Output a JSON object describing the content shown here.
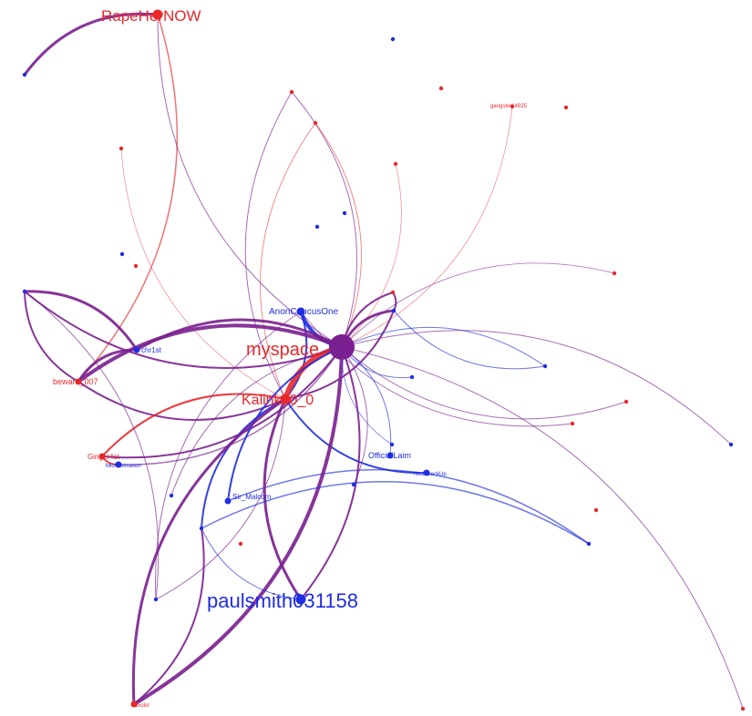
{
  "graph": {
    "colors": {
      "red": "#e8282b",
      "blue": "#1f2ee0",
      "purple": "#7a1f8f"
    },
    "nodes": [
      {
        "id": "rape",
        "label": "RapeHerNOW",
        "color": "red",
        "size": "large"
      },
      {
        "id": "nwaccount",
        "label": "",
        "color": "blue",
        "size": "tiny"
      },
      {
        "id": "tb1",
        "label": "",
        "color": "blue",
        "size": "tiny"
      },
      {
        "id": "tr1",
        "label": "",
        "color": "red",
        "size": "tiny"
      },
      {
        "id": "ganga",
        "label": "gangster14925",
        "color": "red",
        "size": "tiny"
      },
      {
        "id": "tr2",
        "label": "",
        "color": "red",
        "size": "tiny"
      },
      {
        "id": "tr3",
        "label": "",
        "color": "red",
        "size": "tiny"
      },
      {
        "id": "tr4",
        "label": "",
        "color": "red",
        "size": "tiny"
      },
      {
        "id": "tr5",
        "label": "",
        "color": "red",
        "size": "tiny"
      },
      {
        "id": "tr6",
        "label": "",
        "color": "red",
        "size": "tiny"
      },
      {
        "id": "tb2",
        "label": "",
        "color": "blue",
        "size": "tiny"
      },
      {
        "id": "tb3",
        "label": "",
        "color": "blue",
        "size": "tiny"
      },
      {
        "id": "tb4",
        "label": "",
        "color": "blue",
        "size": "tiny"
      },
      {
        "id": "tr7",
        "label": "",
        "color": "red",
        "size": "tiny"
      },
      {
        "id": "tr8",
        "label": "",
        "color": "red",
        "size": "tiny"
      },
      {
        "id": "tb5",
        "label": "",
        "color": "blue",
        "size": "tiny"
      },
      {
        "id": "anon",
        "label": "AnonCaucusOne",
        "color": "blue",
        "size": "medium"
      },
      {
        "id": "tb6",
        "label": "",
        "color": "blue",
        "size": "tiny"
      },
      {
        "id": "tr9",
        "label": "",
        "color": "red",
        "size": "tiny"
      },
      {
        "id": "chr",
        "label": "chr1st",
        "color": "blue",
        "size": "small"
      },
      {
        "id": "hub",
        "label": "myspace",
        "color": "red",
        "size": "hub"
      },
      {
        "id": "beware",
        "label": "beware_007",
        "color": "red",
        "size": "small"
      },
      {
        "id": "tb7",
        "label": "",
        "color": "blue",
        "size": "tiny"
      },
      {
        "id": "tb8",
        "label": "",
        "color": "blue",
        "size": "tiny"
      },
      {
        "id": "kal",
        "label": "Kalinka0_0",
        "color": "red",
        "size": "large"
      },
      {
        "id": "tr10",
        "label": "",
        "color": "red",
        "size": "tiny"
      },
      {
        "id": "tr11",
        "label": "",
        "color": "red",
        "size": "tiny"
      },
      {
        "id": "tb9",
        "label": "",
        "color": "blue",
        "size": "tiny"
      },
      {
        "id": "laim",
        "label": "OfficialLaim",
        "color": "blue",
        "size": "small"
      },
      {
        "id": "gin",
        "label": "Ginger4st",
        "color": "red",
        "size": "small"
      },
      {
        "id": "mic",
        "label": "Michaelmason",
        "color": "blue",
        "size": "small"
      },
      {
        "id": "tb10",
        "label": "",
        "color": "blue",
        "size": "tiny"
      },
      {
        "id": "check",
        "label": "NedCheckUp",
        "color": "blue",
        "size": "small"
      },
      {
        "id": "tb11",
        "label": "",
        "color": "blue",
        "size": "tiny"
      },
      {
        "id": "tb12",
        "label": "",
        "color": "blue",
        "size": "tiny"
      },
      {
        "id": "mal",
        "label": "Sir_Malcom",
        "color": "blue",
        "size": "small"
      },
      {
        "id": "tr12",
        "label": "",
        "color": "red",
        "size": "tiny"
      },
      {
        "id": "tr13",
        "label": "",
        "color": "red",
        "size": "tiny"
      },
      {
        "id": "tb13",
        "label": "",
        "color": "blue",
        "size": "tiny"
      },
      {
        "id": "tb14",
        "label": "",
        "color": "blue",
        "size": "tiny"
      },
      {
        "id": "tb15",
        "label": "",
        "color": "blue",
        "size": "tiny"
      },
      {
        "id": "paul",
        "label": "paulsmith031158",
        "color": "blue",
        "size": "large"
      },
      {
        "id": "xoxo",
        "label": "xoxolol",
        "color": "red",
        "size": "small"
      },
      {
        "id": "tr14",
        "label": "",
        "color": "red",
        "size": "tiny"
      }
    ],
    "edges": [
      [
        "rape",
        "nwaccount",
        "purple",
        3
      ],
      [
        "rape",
        "beware",
        "red",
        1.5
      ],
      [
        "rape",
        "hub",
        "purple",
        1
      ],
      [
        "tr1",
        "hub",
        "purple",
        1
      ],
      [
        "tr1",
        "kal",
        "purple",
        1
      ],
      [
        "tr3",
        "hub",
        "red",
        0.8
      ],
      [
        "tr3",
        "kal",
        "red",
        0.8
      ],
      [
        "tr4",
        "hub",
        "red",
        0.6
      ],
      [
        "tr6",
        "hub",
        "purple",
        0.8
      ],
      [
        "ganga",
        "hub",
        "red",
        0.6
      ],
      [
        "tr2",
        "kal",
        "red",
        0.6
      ],
      [
        "tr11",
        "anon",
        "purple",
        1
      ],
      [
        "anon",
        "hub",
        "blue",
        4
      ],
      [
        "anon",
        "kal",
        "blue",
        2
      ],
      [
        "tb6",
        "hub",
        "purple",
        3
      ],
      [
        "tb6",
        "kal",
        "purple",
        2
      ],
      [
        "tb6",
        "tb7",
        "blue",
        1
      ],
      [
        "chr",
        "hub",
        "purple",
        3
      ],
      [
        "chr",
        "beware",
        "purple",
        3
      ],
      [
        "tb5",
        "chr",
        "purple",
        3
      ],
      [
        "tb5",
        "hub",
        "purple",
        2
      ],
      [
        "beware",
        "hub",
        "purple",
        4
      ],
      [
        "beware",
        "kal",
        "purple",
        2
      ],
      [
        "beware",
        "tb5",
        "purple",
        2
      ],
      [
        "tr9",
        "hub",
        "purple",
        2
      ],
      [
        "tr9",
        "tb6",
        "purple",
        2
      ],
      [
        "tb7",
        "hub",
        "blue",
        1
      ],
      [
        "tb8",
        "hub",
        "blue",
        1
      ],
      [
        "hub",
        "kal",
        "red",
        6
      ],
      [
        "hub",
        "gin",
        "purple",
        2
      ],
      [
        "kal",
        "gin",
        "red",
        2
      ],
      [
        "hub",
        "mic",
        "purple",
        1.5
      ],
      [
        "gin",
        "mic",
        "red",
        2
      ],
      [
        "hub",
        "laim",
        "blue",
        1
      ],
      [
        "kal",
        "check",
        "blue",
        2
      ],
      [
        "hub",
        "tb10",
        "purple",
        1
      ],
      [
        "hub",
        "mal",
        "blue",
        2
      ],
      [
        "mal",
        "tb13",
        "blue",
        1.5
      ],
      [
        "kal",
        "tb14",
        "blue",
        2
      ],
      [
        "hub",
        "xoxo",
        "purple",
        4
      ],
      [
        "kal",
        "xoxo",
        "purple",
        3
      ],
      [
        "paul",
        "kal",
        "purple",
        3
      ],
      [
        "paul",
        "hub",
        "purple",
        2
      ],
      [
        "paul",
        "tb14",
        "blue",
        1
      ],
      [
        "hub",
        "tb12",
        "purple",
        1
      ],
      [
        "tb14",
        "tb13",
        "blue",
        1.5
      ],
      [
        "xoxo",
        "tb14",
        "purple",
        2
      ],
      [
        "kal",
        "tb15",
        "purple",
        1
      ],
      [
        "anon",
        "tb15",
        "purple",
        1
      ],
      [
        "tb5",
        "tb15",
        "purple",
        1
      ],
      [
        "tb11",
        "hub",
        "purple",
        1
      ],
      [
        "tb9",
        "hub",
        "blue",
        0.8
      ],
      [
        "tr14",
        "hub",
        "purple",
        1
      ],
      [
        "tr10",
        "hub",
        "purple",
        1
      ]
    ]
  }
}
